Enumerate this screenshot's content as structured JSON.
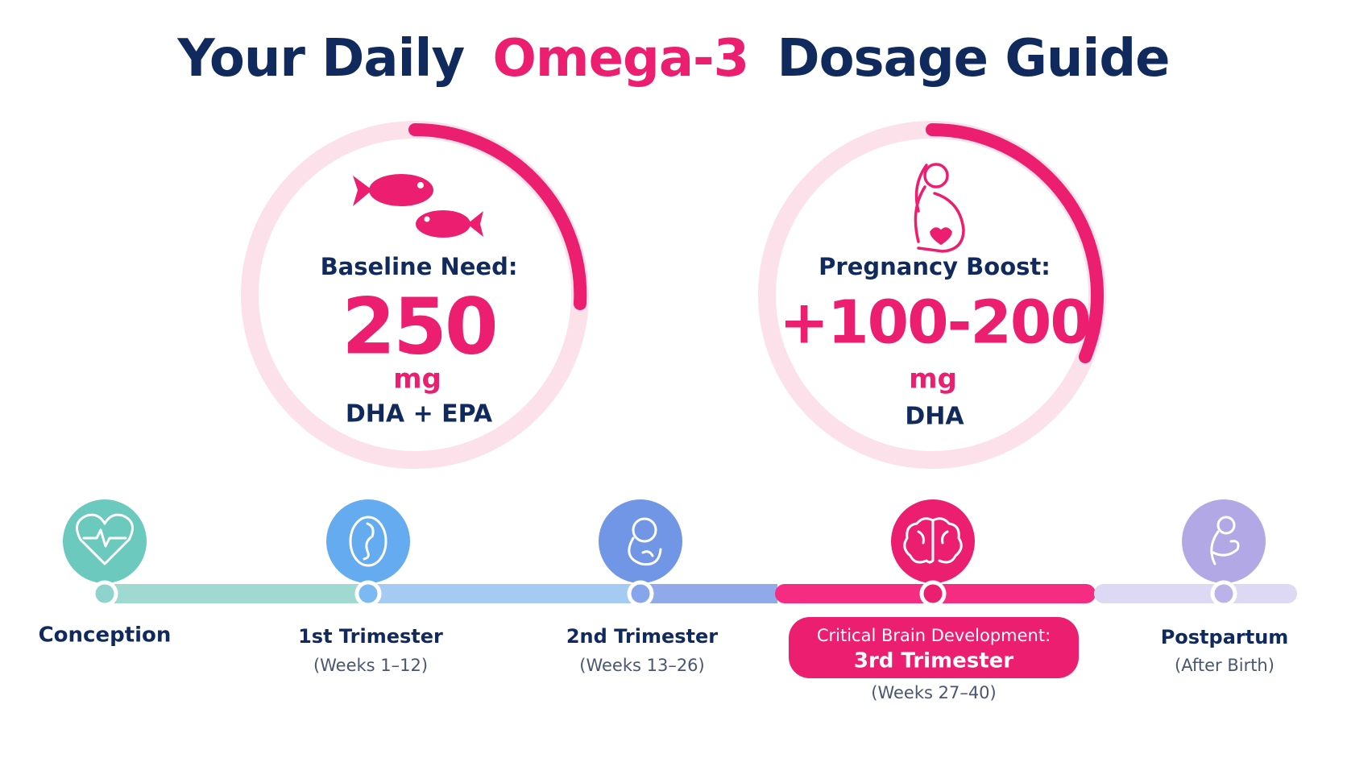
{
  "title": {
    "before": "Your Daily",
    "highlight": "Omega-3",
    "after": "Dosage Guide"
  },
  "cards": [
    {
      "label": "Baseline Need:",
      "value": "250",
      "unit": "mg",
      "note": "DHA + EPA"
    },
    {
      "label": "Pregnancy Boost:",
      "value": "+100-200",
      "unit": "mg",
      "note": "DHA"
    }
  ],
  "timeline": [
    {
      "name": "Conception"
    },
    {
      "name": "1st Trimester",
      "detail": "(Weeks 1–12)"
    },
    {
      "name": "2nd Trimester",
      "detail": "(Weeks 13–26)"
    },
    {
      "callout": "Critical Brain Development:",
      "name": "3rd Trimester",
      "detail": "(Weeks 27–40)"
    },
    {
      "name": "Postpartum",
      "detail": "(After Birth)"
    }
  ]
}
